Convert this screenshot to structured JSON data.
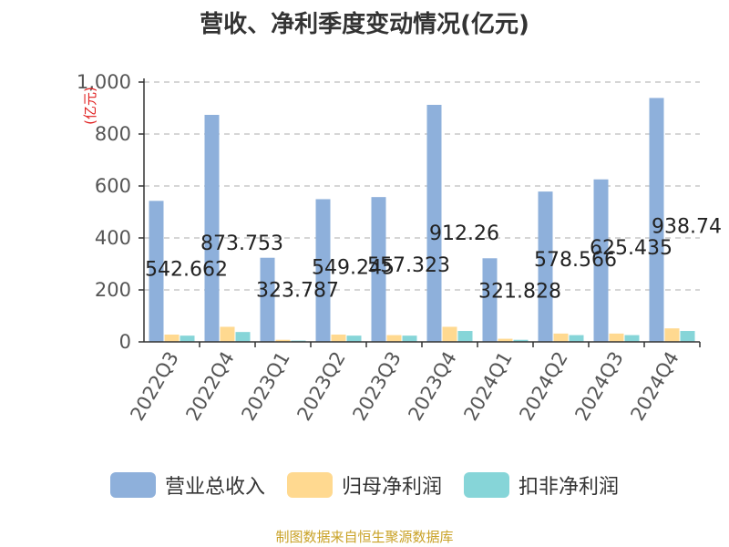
{
  "chart_data": {
    "type": "bar",
    "title": "营收、净利季度变动情况(亿元)",
    "ylabel": "(亿元)",
    "ylim": [
      0,
      1000
    ],
    "yticks": [
      "0",
      "200",
      "400",
      "600",
      "800",
      "1,000"
    ],
    "grid": true,
    "legend_position": "bottom",
    "categories": [
      "2022Q3",
      "2022Q4",
      "2023Q1",
      "2023Q2",
      "2023Q3",
      "2023Q4",
      "2024Q1",
      "2024Q2",
      "2024Q3",
      "2024Q4"
    ],
    "series": [
      {
        "name": "营业总收入",
        "color": "#8eb0db",
        "values": [
          542.662,
          873.753,
          323.787,
          549.245,
          557.323,
          912.26,
          321.828,
          578.566,
          625.435,
          938.74
        ]
      },
      {
        "name": "归母净利润",
        "color": "#ffd990",
        "values": [
          28,
          58,
          8,
          28,
          26,
          58,
          12,
          32,
          32,
          52
        ]
      },
      {
        "name": "扣非净利润",
        "color": "#86d5d8",
        "values": [
          24,
          38,
          5,
          24,
          24,
          42,
          8,
          26,
          26,
          42
        ]
      }
    ],
    "data_labels": [
      "542.662",
      "873.753",
      "323.787",
      "549.245",
      "557.323",
      "912.26",
      "321.828",
      "578.566",
      "625.435",
      "938.74"
    ]
  },
  "source": "制图数据来自恒生聚源数据库"
}
